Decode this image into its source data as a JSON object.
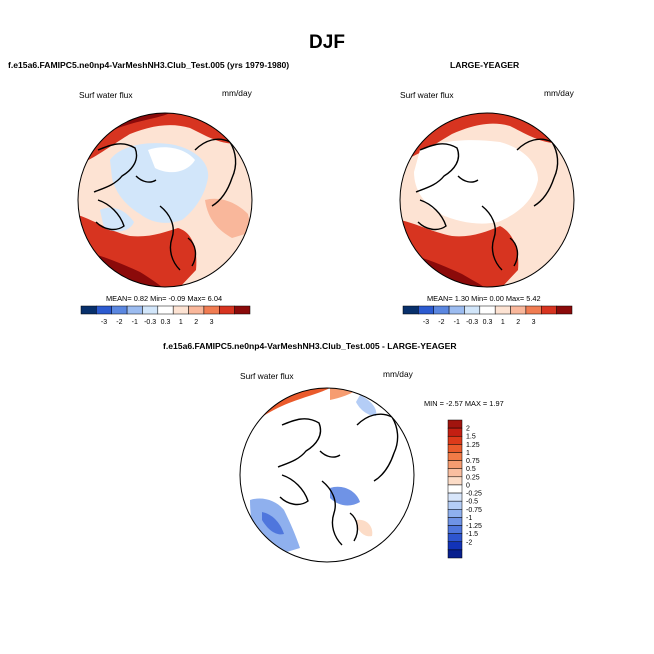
{
  "page": {
    "season": "DJF",
    "top_left_title": "f.e15a6.FAMIPC5.ne0np4-VarMeshNH3.Club_Test.005 (yrs 1979-1980)",
    "top_right_title": "LARGE-YEAGER",
    "bottom_title": "f.e15a6.FAMIPC5.ne0np4-VarMeshNH3.Club_Test.005 - LARGE-YEAGER"
  },
  "chart_data": [
    {
      "type": "map",
      "variable": "Surf water flux",
      "units": "mm/day",
      "projection": "north-polar stereographic",
      "stats_text": "MEAN=  0.82  Min=  -0.09  Max=  6.04",
      "stats": {
        "mean": 0.82,
        "min": -0.09,
        "max": 6.04
      },
      "colorbar": {
        "orientation": "horizontal",
        "levels": [
          -3,
          -2,
          -1,
          -0.3,
          0.3,
          1,
          2,
          3
        ],
        "tick_labels": [
          "-3",
          "-2",
          "-1",
          "-0.3",
          "0.3",
          "1",
          "2",
          "3"
        ],
        "colors": [
          "#08306b",
          "#2c5bd0",
          "#5b87e0",
          "#9cbcf0",
          "#d2e6fa",
          "#ffffff",
          "#fde3d3",
          "#f9b79b",
          "#f07c52",
          "#d73420",
          "#8b0a0a"
        ]
      }
    },
    {
      "type": "map",
      "variable": "Surf water flux",
      "units": "mm/day",
      "projection": "north-polar stereographic",
      "stats_text": "MEAN=  1.30  Min=  0.00  Max=  5.42",
      "stats": {
        "mean": 1.3,
        "min": 0.0,
        "max": 5.42
      },
      "colorbar": {
        "orientation": "horizontal",
        "levels": [
          -3,
          -2,
          -1,
          -0.3,
          0.3,
          1,
          2,
          3
        ],
        "tick_labels": [
          "-3",
          "-2",
          "-1",
          "-0.3",
          "0.3",
          "1",
          "2",
          "3"
        ],
        "colors": [
          "#08306b",
          "#2c5bd0",
          "#5b87e0",
          "#9cbcf0",
          "#d2e6fa",
          "#ffffff",
          "#fde3d3",
          "#f9b79b",
          "#f07c52",
          "#d73420",
          "#8b0a0a"
        ]
      }
    },
    {
      "type": "map",
      "variable": "Surf water flux",
      "units": "mm/day",
      "projection": "north-polar stereographic",
      "stats_text": "MIN = -2.57 MAX =  1.97",
      "stats": {
        "min": -2.57,
        "max": 1.97
      },
      "colorbar": {
        "orientation": "vertical",
        "levels": [
          2,
          1.5,
          1.25,
          1,
          0.75,
          0.5,
          0.25,
          0,
          -0.25,
          -0.5,
          -0.75,
          -1,
          -1.25,
          -1.5,
          -2
        ],
        "tick_labels": [
          "2",
          "1.5",
          "1.25",
          "1",
          "0.75",
          "0.5",
          "0.25",
          "0",
          "-0.25",
          "-0.5",
          "-0.75",
          "-1",
          "-1.25",
          "-1.5",
          "-2"
        ],
        "colors": [
          "#a1140e",
          "#c41f12",
          "#dd3a1a",
          "#ea5b2c",
          "#f27b47",
          "#f69c70",
          "#f9bea0",
          "#fcdcc7",
          "#ffffff",
          "#d8e6fb",
          "#b4cdf6",
          "#8fb0ee",
          "#6f93e6",
          "#4f76dd",
          "#2e55cf",
          "#1233b8",
          "#081f8e"
        ]
      }
    }
  ]
}
